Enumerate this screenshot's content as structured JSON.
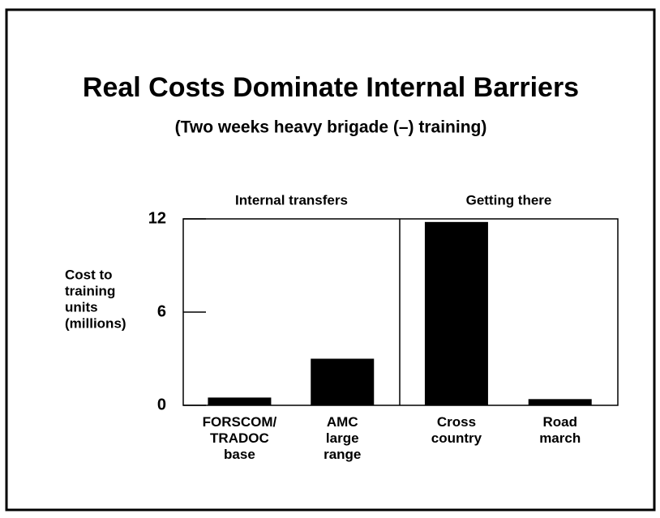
{
  "chart_data": {
    "type": "bar",
    "title": "Real Costs Dominate Internal Barriers",
    "subtitle": "(Two weeks heavy brigade (–) training)",
    "ylabel": [
      "Cost to",
      "training",
      "units",
      "(millions)"
    ],
    "groups": [
      "Internal transfers",
      "Getting there"
    ],
    "categories": [
      "FORSCOM/ TRADOC base",
      "AMC large range",
      "Cross country",
      "Road march"
    ],
    "values": [
      0.5,
      3.0,
      11.8,
      0.4
    ],
    "color": "#000000",
    "ylim": [
      0,
      12
    ],
    "yticks": [
      0,
      6,
      12
    ]
  }
}
